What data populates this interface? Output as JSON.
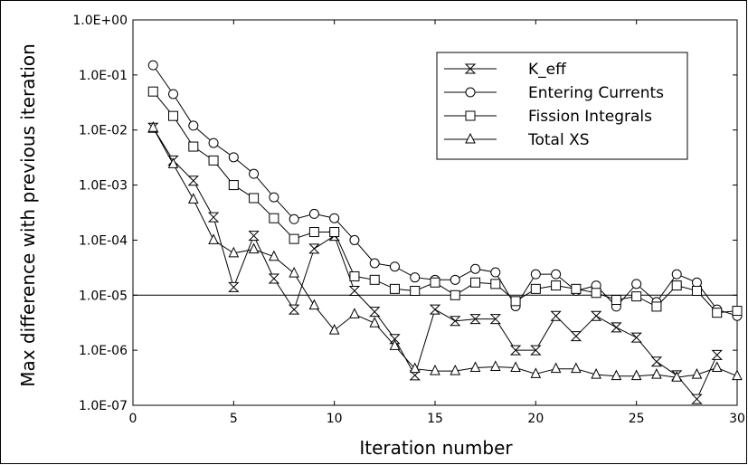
{
  "chart_data": {
    "type": "line",
    "xlabel": "Iteration number",
    "ylabel": "Max difference with previous iteration",
    "xlim": [
      0,
      30
    ],
    "xticks": [
      0,
      5,
      10,
      15,
      20,
      25,
      30
    ],
    "ylim": [
      1e-07,
      1
    ],
    "yscale": "log",
    "yticks": [
      {
        "value": 1e-07,
        "label": "1.0E-07"
      },
      {
        "value": 1e-06,
        "label": "1.0E-06"
      },
      {
        "value": 1e-05,
        "label": "1.0E-05"
      },
      {
        "value": 0.0001,
        "label": "1.0E-04"
      },
      {
        "value": 0.001,
        "label": "1.0E-03"
      },
      {
        "value": 0.01,
        "label": "1.0E-02"
      },
      {
        "value": 0.1,
        "label": "1.0E-01"
      },
      {
        "value": 1,
        "label": "1.0E+00"
      }
    ],
    "reference_line": 1e-05,
    "legend_position": "top-right",
    "series": [
      {
        "name": "K_eff",
        "marker": "hourglass",
        "x": [
          1,
          2,
          3,
          4,
          5,
          6,
          7,
          8,
          9,
          10,
          11,
          12,
          13,
          14,
          15,
          16,
          17,
          18,
          19,
          20,
          21,
          22,
          23,
          24,
          25,
          26,
          27,
          28,
          29
        ],
        "y": [
          0.011,
          0.0028,
          0.0012,
          0.00026,
          1.4e-05,
          0.00012,
          2e-05,
          5.5e-06,
          7e-05,
          0.00012,
          1.2e-05,
          5e-06,
          1.6e-06,
          3.5e-07,
          5.5e-06,
          3.4e-06,
          3.7e-06,
          3.7e-06,
          1e-06,
          1e-06,
          4.2e-06,
          1.8e-06,
          4.2e-06,
          2.6e-06,
          1.7e-06,
          6.2e-07,
          3.5e-07,
          1.3e-07,
          8.2e-07
        ]
      },
      {
        "name": "Entering Currents",
        "marker": "circle",
        "x": [
          1,
          2,
          3,
          4,
          5,
          6,
          7,
          8,
          9,
          10,
          11,
          12,
          13,
          14,
          15,
          16,
          17,
          18,
          19,
          20,
          21,
          22,
          23,
          24,
          25,
          26,
          27,
          28,
          29,
          30
        ],
        "y": [
          0.15,
          0.045,
          0.012,
          0.0058,
          0.0032,
          0.0016,
          0.0006,
          0.00024,
          0.0003,
          0.00025,
          0.0001,
          3.8e-05,
          3.3e-05,
          2.1e-05,
          1.9e-05,
          1.9e-05,
          3e-05,
          2.6e-05,
          6.3e-06,
          2.4e-05,
          2.4e-05,
          1.2e-05,
          1.5e-05,
          6.2e-06,
          1.6e-05,
          7.5e-06,
          2.4e-05,
          1.7e-05,
          5.5e-06,
          4.2e-06
        ]
      },
      {
        "name": "Fission Integrals",
        "marker": "square",
        "x": [
          1,
          2,
          3,
          4,
          5,
          6,
          7,
          8,
          9,
          10,
          11,
          12,
          13,
          14,
          15,
          16,
          17,
          18,
          19,
          20,
          21,
          22,
          23,
          24,
          25,
          26,
          27,
          28,
          29,
          30
        ],
        "y": [
          0.05,
          0.018,
          0.005,
          0.0028,
          0.001,
          0.00058,
          0.00025,
          0.000105,
          0.00014,
          0.00014,
          2.2e-05,
          1.9e-05,
          1.3e-05,
          1.2e-05,
          1.7e-05,
          1e-05,
          1.7e-05,
          1.6e-05,
          7.8e-06,
          1.3e-05,
          1.5e-05,
          1.3e-05,
          1.1e-05,
          8.2e-06,
          9.5e-06,
          6.2e-06,
          1.5e-05,
          1.2e-05,
          4.8e-06,
          5.2e-06
        ]
      },
      {
        "name": "Total XS",
        "marker": "triangle",
        "x": [
          1,
          2,
          3,
          4,
          5,
          6,
          7,
          8,
          9,
          10,
          11,
          12,
          13,
          14,
          15,
          16,
          17,
          18,
          19,
          20,
          21,
          22,
          23,
          24,
          25,
          26,
          27,
          28,
          29,
          30
        ],
        "y": [
          0.011,
          0.0024,
          0.00055,
          0.0001,
          5.8e-05,
          6.8e-05,
          5e-05,
          2.5e-05,
          6.5e-06,
          2.3e-06,
          4.5e-06,
          3.1e-06,
          1.2e-06,
          4.6e-07,
          4.2e-07,
          4.2e-07,
          4.8e-07,
          5e-07,
          4.8e-07,
          3.7e-07,
          4.6e-07,
          4.6e-07,
          3.6e-07,
          3.4e-07,
          3.4e-07,
          3.6e-07,
          3.2e-07,
          3.6e-07,
          4.8e-07,
          3.4e-07
        ]
      }
    ]
  }
}
